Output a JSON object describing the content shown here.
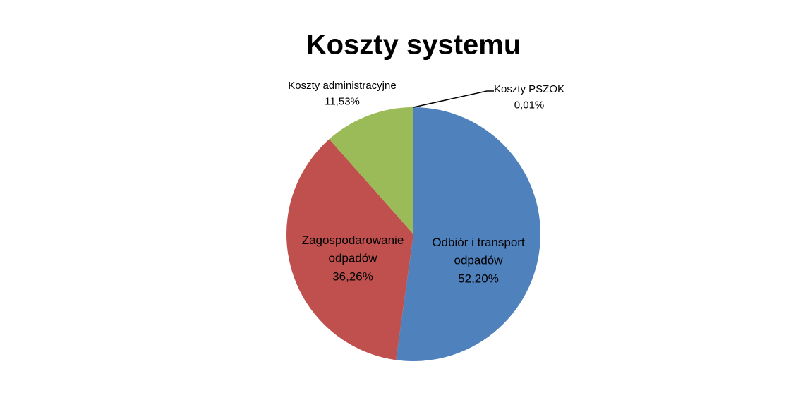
{
  "chart_data": {
    "type": "pie",
    "title": "Koszty systemu",
    "categories": [
      "Odbiór i transport odpadów",
      "Zagospodarowanie odpadów",
      "Koszty administracyjne",
      "Koszty PSZOK"
    ],
    "values": [
      52.2,
      36.26,
      11.53,
      0.01
    ],
    "value_labels": [
      "52,20%",
      "36,26%",
      "11,53%",
      "0,01%"
    ],
    "colors": [
      "#4f81bd",
      "#c0504d",
      "#9bbb59",
      "#8064a2"
    ]
  }
}
